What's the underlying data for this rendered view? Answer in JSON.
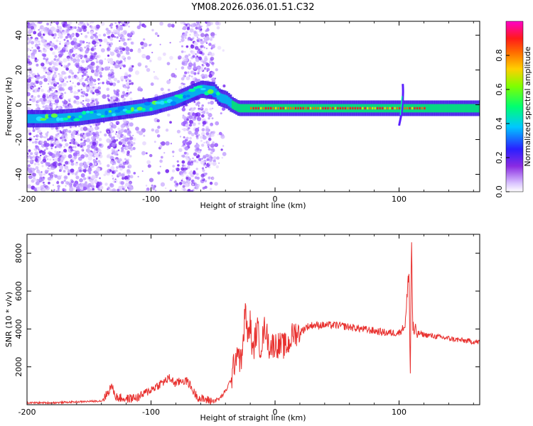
{
  "title": "YM08.2026.036.01.51.C32",
  "chart_data": [
    {
      "type": "heatmap",
      "name": "spectrogram",
      "xlabel": "Height of straight line (km)",
      "ylabel": "Frequency (Hz)",
      "xlim": [
        -200,
        165
      ],
      "ylim": [
        -50,
        48
      ],
      "xticks": [
        -200,
        -100,
        0,
        100
      ],
      "yticks": [
        -40,
        -20,
        0,
        20,
        40
      ],
      "colorbar": {
        "label": "Normalized spectral amplitude",
        "range": [
          0,
          1
        ],
        "ticks": [
          0.0,
          0.2,
          0.4,
          0.6,
          0.8
        ]
      },
      "ridge": {
        "x": [
          -200,
          -180,
          -160,
          -140,
          -120,
          -100,
          -80,
          -60,
          -50,
          -45,
          -40,
          -35,
          -30,
          -25,
          -20,
          -10,
          0,
          20,
          60,
          90,
          100,
          110,
          120,
          165
        ],
        "y": [
          -8,
          -8,
          -7,
          -5,
          -3,
          -1,
          3,
          9,
          8,
          4,
          3,
          0,
          -2,
          -2,
          -2,
          -2,
          -2,
          -2,
          -2,
          -2,
          -2,
          -2,
          -2,
          -2
        ]
      }
    },
    {
      "type": "line",
      "name": "snr",
      "xlabel": "Height of straight line (km)",
      "ylabel": "SNR (10 * v/v)",
      "xlim": [
        -200,
        165
      ],
      "ylim": [
        0,
        9000
      ],
      "xticks": [
        -200,
        -100,
        0,
        100
      ],
      "yticks": [
        2000,
        4000,
        6000,
        8000
      ],
      "series": [
        {
          "name": "SNR",
          "color": "#e8302e",
          "x": [
            -200,
            -180,
            -160,
            -140,
            -135,
            -132,
            -128,
            -120,
            -110,
            -100,
            -95,
            -90,
            -85,
            -80,
            -75,
            -70,
            -65,
            -60,
            -55,
            -50,
            -45,
            -40,
            -35,
            -32,
            -30,
            -28,
            -26,
            -24,
            -22,
            -20,
            -18,
            -16,
            -14,
            -12,
            -10,
            -8,
            -5,
            0,
            5,
            10,
            15,
            20,
            25,
            30,
            40,
            50,
            60,
            70,
            80,
            90,
            100,
            105,
            108,
            109,
            110,
            111,
            112,
            114,
            120,
            130,
            140,
            150,
            165
          ],
          "y": [
            100,
            100,
            150,
            200,
            600,
            1000,
            400,
            300,
            400,
            800,
            1000,
            1200,
            1400,
            1100,
            1300,
            1200,
            600,
            300,
            250,
            200,
            300,
            700,
            1400,
            2500,
            3000,
            2200,
            2800,
            5200,
            3400,
            4400,
            2600,
            3600,
            4000,
            3000,
            3500,
            4200,
            3100,
            3200,
            3100,
            3100,
            3800,
            3800,
            4100,
            4200,
            4200,
            4200,
            4100,
            4000,
            3900,
            3800,
            3800,
            4200,
            7200,
            1300,
            9000,
            4200,
            3800,
            3800,
            3700,
            3600,
            3500,
            3400,
            3300
          ]
        }
      ]
    }
  ]
}
